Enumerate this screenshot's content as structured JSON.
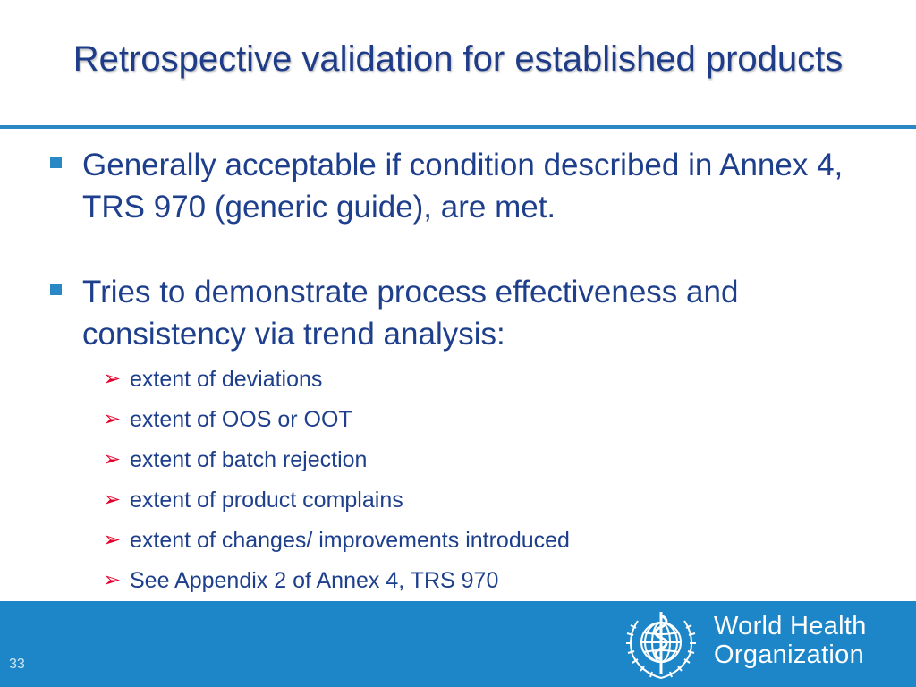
{
  "slide": {
    "title": "Retrospective validation for established products",
    "page_number": "33"
  },
  "bullets": [
    {
      "text": "Generally acceptable if condition described in Annex 4, TRS 970 (generic guide), are met."
    },
    {
      "text": "Tries to demonstrate process effectiveness and consistency via trend analysis:"
    }
  ],
  "sub_bullets": [
    {
      "text": "extent of deviations"
    },
    {
      "text": "extent of OOS or OOT"
    },
    {
      "text": "extent of batch rejection"
    },
    {
      "text": "extent of product complains"
    },
    {
      "text": "extent of changes/ improvements introduced"
    },
    {
      "text": "See Appendix 2 of Annex 4, TRS 970"
    }
  ],
  "footer": {
    "org_line1": "World Health",
    "org_line2": "Organization"
  },
  "colors": {
    "title": "#1f3c88",
    "body_text": "#1e3f8c",
    "bullet_marker": "#2a88c6",
    "arrow_marker": "#e4002b",
    "footer_bar": "#1d86c8"
  }
}
